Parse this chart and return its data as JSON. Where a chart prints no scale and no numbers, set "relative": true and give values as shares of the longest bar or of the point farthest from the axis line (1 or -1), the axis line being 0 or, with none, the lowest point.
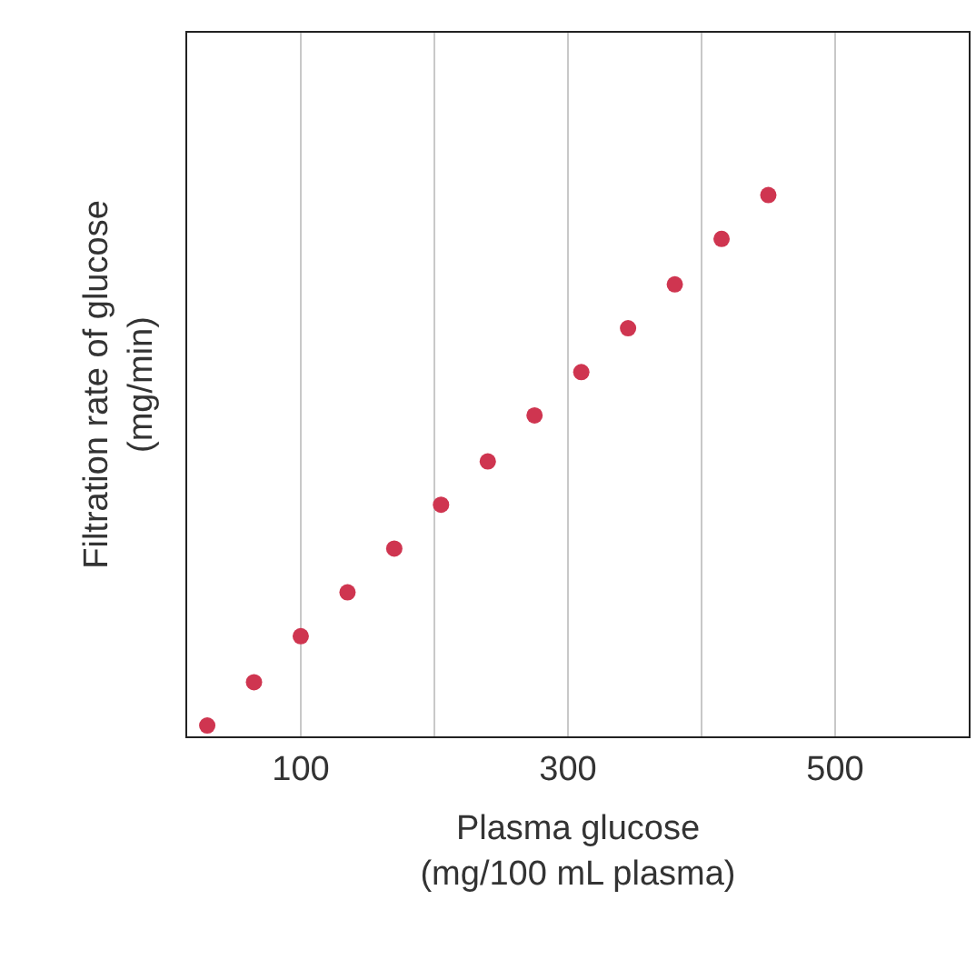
{
  "chart_data": {
    "type": "scatter",
    "xlabel": "Plasma glucose\n(mg/100 mL plasma)",
    "ylabel": "Filtration rate of glucose\n(mg/min)",
    "x": [
      30,
      65,
      100,
      135,
      170,
      205,
      240,
      275,
      310,
      345,
      380,
      415,
      450
    ],
    "series": [
      {
        "color": "#cf3550",
        "values": [
          0.02,
          0.1,
          0.185,
          0.266,
          0.347,
          0.428,
          0.508,
          0.593,
          0.673,
          0.754,
          0.835,
          0.919,
          1
        ]
      }
    ],
    "relative": true,
    "xlim": [
      15,
      600
    ],
    "xticks": [
      100,
      {
        "value": 200,
        "label": null
      },
      300,
      {
        "value": 400,
        "label": null
      },
      500
    ],
    "grid": "x",
    "marker": "circle",
    "tick_labels": "x"
  }
}
